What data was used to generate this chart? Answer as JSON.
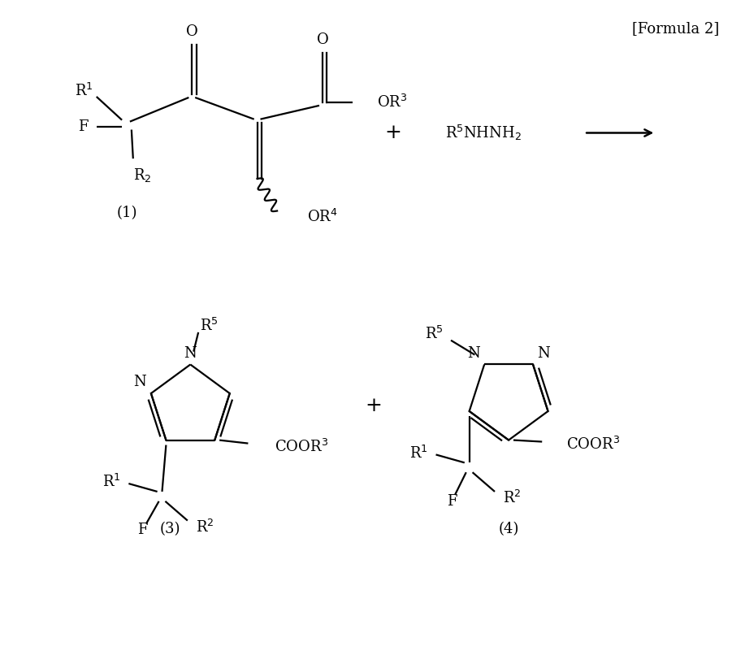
{
  "background_color": "#ffffff",
  "formula_label": "[Formula 2]",
  "compound1_label": "(1)",
  "compound3_label": "(3)",
  "compound4_label": "(4)",
  "font_size": 13,
  "lw": 1.6
}
